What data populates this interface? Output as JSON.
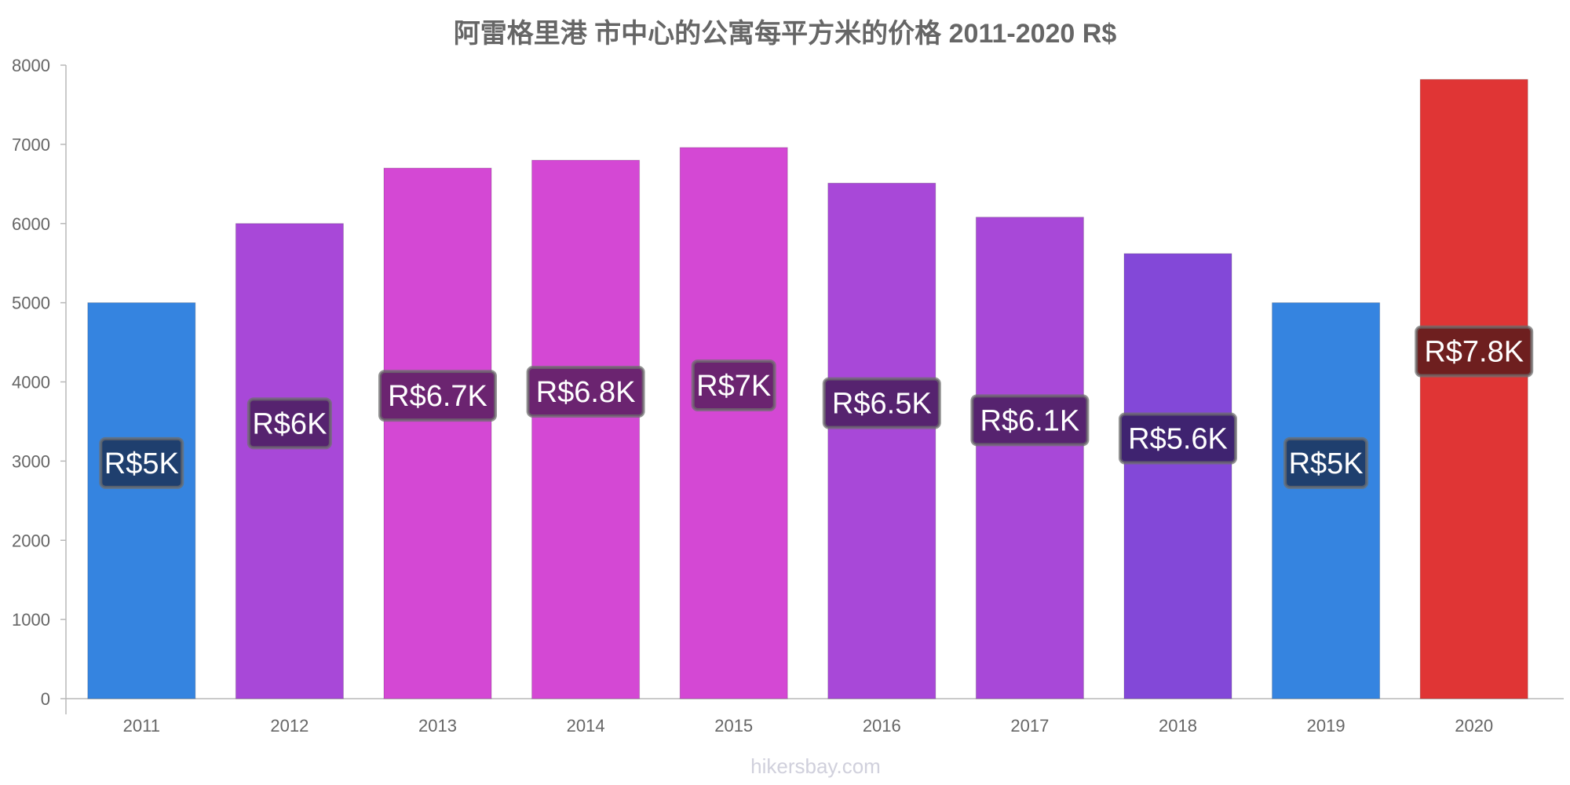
{
  "chart_data": {
    "type": "bar",
    "title": "阿雷格里港 市中心的公寓每平方米的价格 2011-2020 R$",
    "xlabel": "",
    "ylabel": "",
    "categories": [
      "2011",
      "2012",
      "2013",
      "2014",
      "2015",
      "2016",
      "2017",
      "2018",
      "2019",
      "2020"
    ],
    "values": [
      5000,
      6000,
      6700,
      6800,
      6960,
      6510,
      6080,
      5620,
      5000,
      7820
    ],
    "data_labels": [
      "R$5K",
      "R$6K",
      "R$6.7K",
      "R$6.8K",
      "R$7K",
      "R$6.5K",
      "R$6.1K",
      "R$5.6K",
      "R$5K",
      "R$7.8K"
    ],
    "bar_colors": [
      "#3584e0",
      "#a848d8",
      "#d448d4",
      "#d448d4",
      "#d448d4",
      "#a848d8",
      "#a848d8",
      "#8348d8",
      "#3584e0",
      "#e03535"
    ],
    "label_bg_colors": [
      "#1f3f6e",
      "#56236f",
      "#6b2470",
      "#6b2470",
      "#6b2470",
      "#56236f",
      "#56236f",
      "#3f2370",
      "#1f3f6e",
      "#6e1f1f"
    ],
    "ylim": [
      0,
      8000
    ],
    "yticks": [
      "0",
      "1000",
      "2000",
      "3000",
      "4000",
      "5000",
      "6000",
      "7000",
      "8000"
    ],
    "grid": false,
    "legend": "none"
  },
  "watermark": "hikersbay.com"
}
